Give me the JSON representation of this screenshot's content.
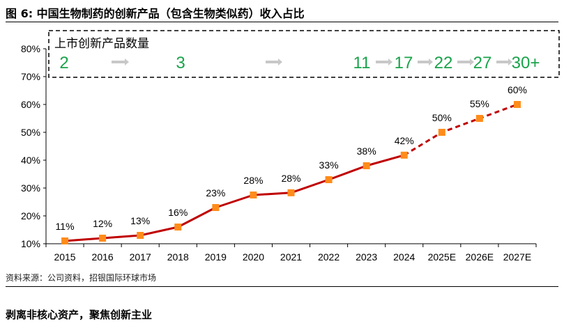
{
  "figure": {
    "title": "图 6: 中国生物制药的创新产品（包含生物类似药）收入占比",
    "source": "资料来源：公司资料，招银国际环球市场",
    "section_title": "剥离非核心资产，聚焦创新主业"
  },
  "launch_box": {
    "label": "上市创新产品数量",
    "counts": [
      "2",
      "3",
      "11",
      "17",
      "22",
      "27",
      "30+"
    ],
    "count_color": "#1aa34a",
    "arrow_color": "#c8c8c8"
  },
  "colors": {
    "line": "#c00000",
    "marker": "#ff8c1a"
  },
  "chart_data": {
    "type": "line",
    "categories": [
      "2015",
      "2016",
      "2017",
      "2018",
      "2019",
      "2020",
      "2021",
      "2022",
      "2023",
      "2024",
      "2025E",
      "2026E",
      "2027E"
    ],
    "values": [
      11,
      12,
      13,
      16,
      23,
      27.5,
      28.3,
      33,
      38,
      41.8,
      50,
      55,
      60
    ],
    "data_labels": [
      "11%",
      "12%",
      "13%",
      "16%",
      "23%",
      "28%",
      "28%",
      "33%",
      "38%",
      "42%",
      "50%",
      "55%",
      "60%"
    ],
    "forecast_from_index": 9,
    "ylim": [
      10,
      80
    ],
    "yticks": [
      10,
      20,
      30,
      40,
      50,
      60,
      70,
      80
    ],
    "ytick_labels": [
      "10%",
      "20%",
      "30%",
      "40%",
      "50%",
      "60%",
      "70%",
      "80%"
    ]
  }
}
